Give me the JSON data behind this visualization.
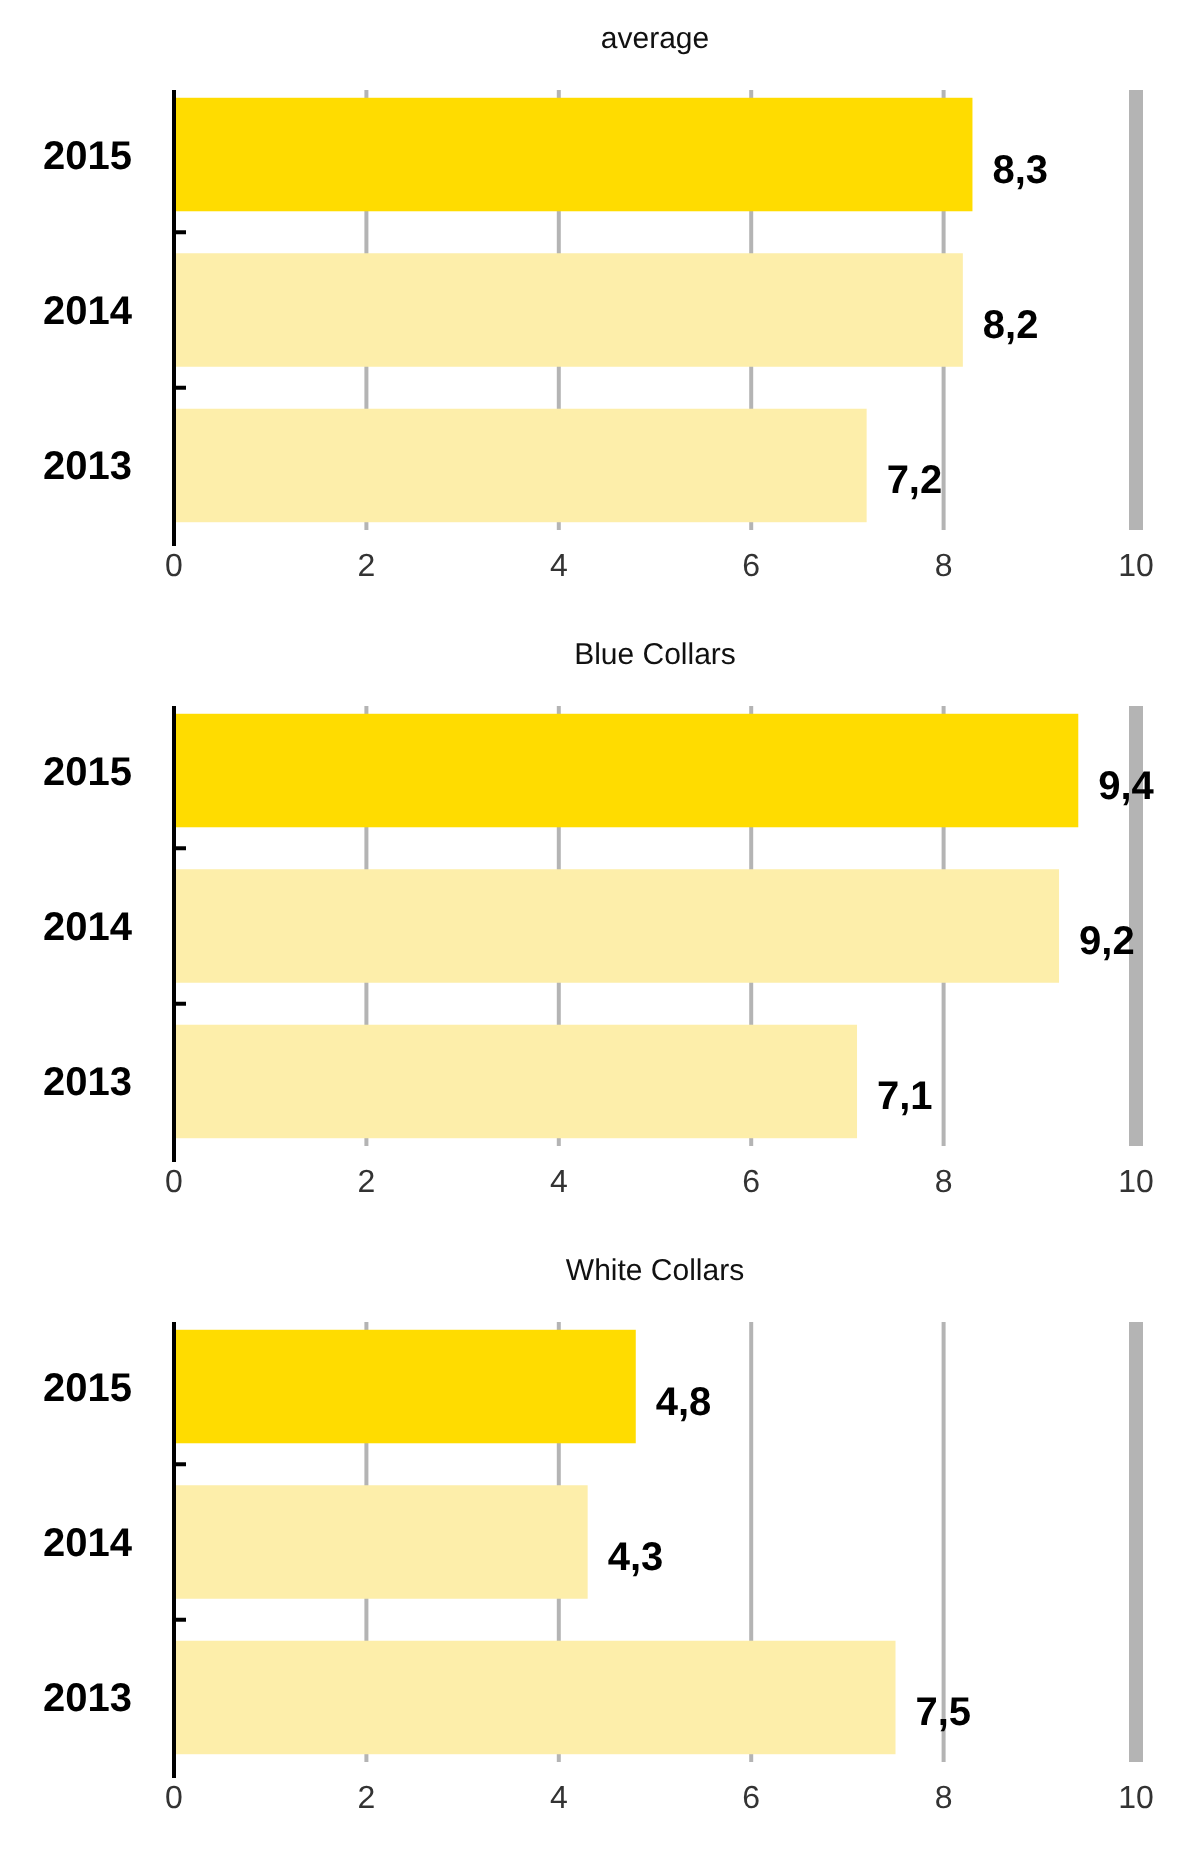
{
  "chart_data": [
    {
      "type": "bar",
      "orientation": "horizontal",
      "title": "average",
      "categories": [
        "2015",
        "2014",
        "2013"
      ],
      "values": [
        8.3,
        8.2,
        7.2
      ],
      "colors": [
        "#ffdc00",
        "#fdeeaa",
        "#fdeeaa"
      ],
      "value_labels": [
        "8,3",
        "8,2",
        "7,2"
      ],
      "xlim": [
        0,
        10
      ],
      "xticks": [
        0,
        2,
        4,
        6,
        8,
        10
      ],
      "grid": "x"
    },
    {
      "type": "bar",
      "orientation": "horizontal",
      "title": "Blue Collars",
      "categories": [
        "2015",
        "2014",
        "2013"
      ],
      "values": [
        9.4,
        9.2,
        7.1
      ],
      "colors": [
        "#ffdc00",
        "#fdeeaa",
        "#fdeeaa"
      ],
      "value_labels": [
        "9,4",
        "9,2",
        "7,1"
      ],
      "xlim": [
        0,
        10
      ],
      "xticks": [
        0,
        2,
        4,
        6,
        8,
        10
      ],
      "grid": "x"
    },
    {
      "type": "bar",
      "orientation": "horizontal",
      "title": "White Collars",
      "categories": [
        "2015",
        "2014",
        "2013"
      ],
      "values": [
        4.8,
        4.3,
        7.5
      ],
      "colors": [
        "#ffdc00",
        "#fdeeaa",
        "#fdeeaa"
      ],
      "value_labels": [
        "4,8",
        "4,3",
        "7,5"
      ],
      "xlim": [
        0,
        10
      ],
      "xticks": [
        0,
        2,
        4,
        6,
        8,
        10
      ],
      "grid": "x"
    }
  ]
}
